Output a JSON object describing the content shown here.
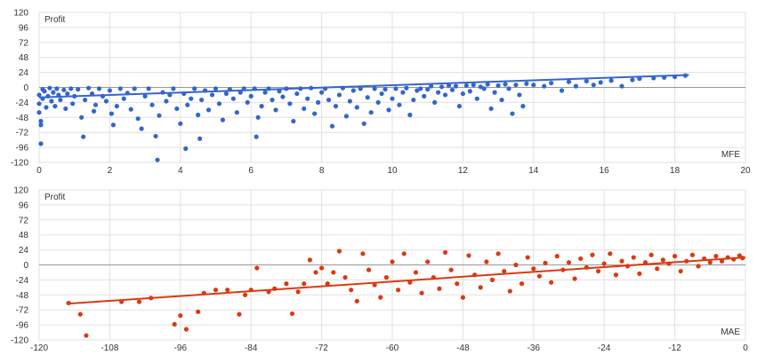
{
  "colors": {
    "mfe": "#3366cc",
    "mae": "#dc3912",
    "grid": "#e0e0e0",
    "zero": "#999999",
    "frame": "#c8c8c8"
  },
  "chart_data": [
    {
      "type": "scatter",
      "ylabel": "Profit",
      "xlabel": "MFE",
      "xlim": [
        0,
        20
      ],
      "ylim": [
        -120,
        120
      ],
      "xticks": [
        0,
        2,
        4,
        6,
        8,
        10,
        12,
        14,
        16,
        18,
        20
      ],
      "yticks": [
        -120,
        -96,
        -72,
        -48,
        -24,
        0,
        24,
        48,
        72,
        96,
        120
      ],
      "grid": true,
      "trendline": {
        "x": [
          0,
          18.4
        ],
        "y": [
          -16,
          20
        ]
      },
      "series": [
        {
          "color": "#3366cc",
          "points": [
            [
              0.0,
              -12
            ],
            [
              0.0,
              -26
            ],
            [
              0.0,
              -40
            ],
            [
              0.05,
              -54
            ],
            [
              0.05,
              -60
            ],
            [
              0.05,
              -90
            ],
            [
              0.1,
              -3
            ],
            [
              0.1,
              -18
            ],
            [
              0.15,
              -6
            ],
            [
              0.2,
              -32
            ],
            [
              0.25,
              -14
            ],
            [
              0.3,
              -1
            ],
            [
              0.35,
              -22
            ],
            [
              0.4,
              -8
            ],
            [
              0.45,
              -30
            ],
            [
              0.5,
              -2
            ],
            [
              0.55,
              -12
            ],
            [
              0.6,
              -20
            ],
            [
              0.7,
              -4
            ],
            [
              0.75,
              -34
            ],
            [
              0.8,
              -10
            ],
            [
              0.9,
              -2
            ],
            [
              0.95,
              -26
            ],
            [
              1.0,
              -14
            ],
            [
              1.1,
              -3
            ],
            [
              1.2,
              -48
            ],
            [
              1.25,
              -79
            ],
            [
              1.3,
              -20
            ],
            [
              1.4,
              -1
            ],
            [
              1.5,
              -10
            ],
            [
              1.55,
              -38
            ],
            [
              1.6,
              -28
            ],
            [
              1.7,
              -2
            ],
            [
              1.8,
              -14
            ],
            [
              1.9,
              -22
            ],
            [
              2.0,
              -5
            ],
            [
              2.05,
              -42
            ],
            [
              2.1,
              -60
            ],
            [
              2.2,
              -30
            ],
            [
              2.3,
              -2
            ],
            [
              2.4,
              -18
            ],
            [
              2.5,
              -9
            ],
            [
              2.6,
              -35
            ],
            [
              2.7,
              -2
            ],
            [
              2.8,
              -50
            ],
            [
              2.9,
              -66
            ],
            [
              3.0,
              -14
            ],
            [
              3.1,
              -2
            ],
            [
              3.2,
              -28
            ],
            [
              3.3,
              -78
            ],
            [
              3.35,
              -116
            ],
            [
              3.4,
              -45
            ],
            [
              3.5,
              -8
            ],
            [
              3.6,
              -22
            ],
            [
              3.7,
              -12
            ],
            [
              3.8,
              -2
            ],
            [
              3.9,
              -34
            ],
            [
              4.0,
              -58
            ],
            [
              4.1,
              -10
            ],
            [
              4.15,
              -98
            ],
            [
              4.2,
              -28
            ],
            [
              4.3,
              -18
            ],
            [
              4.4,
              -2
            ],
            [
              4.5,
              -44
            ],
            [
              4.55,
              -82
            ],
            [
              4.6,
              -20
            ],
            [
              4.7,
              -5
            ],
            [
              4.8,
              -36
            ],
            [
              4.9,
              -12
            ],
            [
              5.0,
              -2
            ],
            [
              5.1,
              -26
            ],
            [
              5.2,
              -52
            ],
            [
              5.3,
              -10
            ],
            [
              5.4,
              -3
            ],
            [
              5.5,
              -18
            ],
            [
              5.6,
              -40
            ],
            [
              5.7,
              -8
            ],
            [
              5.8,
              -2
            ],
            [
              5.9,
              -24
            ],
            [
              6.0,
              -14
            ],
            [
              6.1,
              -2
            ],
            [
              6.15,
              -79
            ],
            [
              6.2,
              -48
            ],
            [
              6.3,
              -30
            ],
            [
              6.4,
              -8
            ],
            [
              6.5,
              -2
            ],
            [
              6.6,
              -20
            ],
            [
              6.7,
              -36
            ],
            [
              6.8,
              -6
            ],
            [
              6.9,
              -15
            ],
            [
              7.0,
              -2
            ],
            [
              7.1,
              -26
            ],
            [
              7.2,
              -54
            ],
            [
              7.3,
              -10
            ],
            [
              7.4,
              -2
            ],
            [
              7.5,
              -34
            ],
            [
              7.6,
              -18
            ],
            [
              7.7,
              -1
            ],
            [
              7.8,
              -42
            ],
            [
              7.9,
              -24
            ],
            [
              8.0,
              -8
            ],
            [
              8.1,
              -2
            ],
            [
              8.2,
              -20
            ],
            [
              8.3,
              -62
            ],
            [
              8.4,
              -30
            ],
            [
              8.5,
              -12
            ],
            [
              8.6,
              -1
            ],
            [
              8.7,
              -46
            ],
            [
              8.8,
              -22
            ],
            [
              8.9,
              -5
            ],
            [
              9.0,
              -32
            ],
            [
              9.1,
              -2
            ],
            [
              9.2,
              -58
            ],
            [
              9.3,
              -16
            ],
            [
              9.4,
              -40
            ],
            [
              9.5,
              -2
            ],
            [
              9.6,
              -24
            ],
            [
              9.7,
              -10
            ],
            [
              9.8,
              -3
            ],
            [
              9.9,
              -36
            ],
            [
              10.0,
              -18
            ],
            [
              10.1,
              -2
            ],
            [
              10.2,
              -28
            ],
            [
              10.3,
              -8
            ],
            [
              10.4,
              -1
            ],
            [
              10.5,
              -44
            ],
            [
              10.6,
              -20
            ],
            [
              10.7,
              -5
            ],
            [
              10.8,
              -2
            ],
            [
              10.9,
              -14
            ],
            [
              11.0,
              -3
            ],
            [
              11.1,
              2
            ],
            [
              11.2,
              -24
            ],
            [
              11.3,
              -8
            ],
            [
              11.4,
              1
            ],
            [
              11.5,
              -12
            ],
            [
              11.6,
              3
            ],
            [
              11.7,
              -4
            ],
            [
              11.8,
              2
            ],
            [
              11.9,
              -30
            ],
            [
              12.0,
              -10
            ],
            [
              12.1,
              3
            ],
            [
              12.2,
              -6
            ],
            [
              12.3,
              4
            ],
            [
              12.4,
              -18
            ],
            [
              12.5,
              1
            ],
            [
              12.6,
              -2
            ],
            [
              12.7,
              5
            ],
            [
              12.8,
              -34
            ],
            [
              12.9,
              -8
            ],
            [
              13.0,
              3
            ],
            [
              13.1,
              -20
            ],
            [
              13.2,
              5
            ],
            [
              13.3,
              -2
            ],
            [
              13.4,
              -42
            ],
            [
              13.5,
              4
            ],
            [
              13.6,
              -12
            ],
            [
              13.7,
              -30
            ],
            [
              13.8,
              6
            ],
            [
              14.0,
              4
            ],
            [
              14.3,
              2
            ],
            [
              14.5,
              7
            ],
            [
              14.8,
              -5
            ],
            [
              15.0,
              9
            ],
            [
              15.2,
              2
            ],
            [
              15.5,
              10
            ],
            [
              15.7,
              4
            ],
            [
              15.9,
              8
            ],
            [
              16.2,
              11
            ],
            [
              16.5,
              2
            ],
            [
              16.8,
              12
            ],
            [
              17.0,
              14
            ],
            [
              17.4,
              15
            ],
            [
              17.7,
              16
            ],
            [
              18.0,
              17
            ],
            [
              18.3,
              19
            ]
          ]
        }
      ]
    },
    {
      "type": "scatter",
      "ylabel": "Profit",
      "xlabel": "MAE",
      "xlim": [
        -120,
        0
      ],
      "ylim": [
        -120,
        120
      ],
      "xticks": [
        -120,
        -108,
        -96,
        -84,
        -72,
        -60,
        -48,
        -36,
        -24,
        -12,
        0
      ],
      "yticks": [
        -120,
        -96,
        -72,
        -48,
        -24,
        0,
        24,
        48,
        72,
        96,
        120
      ],
      "grid": true,
      "trendline": {
        "x": [
          -115,
          0
        ],
        "y": [
          -62,
          12
        ]
      },
      "series": [
        {
          "color": "#dc3912",
          "points": [
            [
              -115,
              -61
            ],
            [
              -113,
              -79
            ],
            [
              -112,
              -113
            ],
            [
              -106,
              -59
            ],
            [
              -103,
              -59
            ],
            [
              -101,
              -53
            ],
            [
              -97,
              -95
            ],
            [
              -96,
              -81
            ],
            [
              -95,
              -103
            ],
            [
              -93,
              -75
            ],
            [
              -92,
              -45
            ],
            [
              -90,
              -40
            ],
            [
              -88,
              -40
            ],
            [
              -86,
              -79
            ],
            [
              -85,
              -48
            ],
            [
              -84,
              -40
            ],
            [
              -83,
              -5
            ],
            [
              -81,
              -43
            ],
            [
              -80,
              -38
            ],
            [
              -78,
              -30
            ],
            [
              -77,
              -78
            ],
            [
              -76,
              -43
            ],
            [
              -75,
              -30
            ],
            [
              -74,
              8
            ],
            [
              -73,
              -12
            ],
            [
              -72,
              -5
            ],
            [
              -71,
              -30
            ],
            [
              -70,
              -12
            ],
            [
              -69,
              22
            ],
            [
              -68,
              -20
            ],
            [
              -67,
              -40
            ],
            [
              -66,
              -58
            ],
            [
              -65,
              18
            ],
            [
              -64,
              -8
            ],
            [
              -63,
              -32
            ],
            [
              -62,
              -52
            ],
            [
              -61,
              -20
            ],
            [
              -60,
              5
            ],
            [
              -59,
              -40
            ],
            [
              -58,
              18
            ],
            [
              -57,
              -28
            ],
            [
              -56,
              -12
            ],
            [
              -55,
              -45
            ],
            [
              -54,
              5
            ],
            [
              -53,
              -20
            ],
            [
              -52,
              -38
            ],
            [
              -51,
              20
            ],
            [
              -50,
              -8
            ],
            [
              -49,
              -30
            ],
            [
              -48,
              -52
            ],
            [
              -47,
              15
            ],
            [
              -46,
              -16
            ],
            [
              -45,
              -36
            ],
            [
              -44,
              5
            ],
            [
              -43,
              -24
            ],
            [
              -42,
              18
            ],
            [
              -41,
              -10
            ],
            [
              -40,
              -42
            ],
            [
              -39,
              0
            ],
            [
              -38,
              -30
            ],
            [
              -37,
              12
            ],
            [
              -36,
              -6
            ],
            [
              -35,
              -18
            ],
            [
              -34,
              3
            ],
            [
              -33,
              -28
            ],
            [
              -32,
              14
            ],
            [
              -31,
              -8
            ],
            [
              -30,
              4
            ],
            [
              -29,
              -22
            ],
            [
              -28,
              10
            ],
            [
              -27,
              -4
            ],
            [
              -26,
              16
            ],
            [
              -25,
              -10
            ],
            [
              -24,
              2
            ],
            [
              -23,
              18
            ],
            [
              -22,
              -16
            ],
            [
              -21,
              6
            ],
            [
              -20,
              -2
            ],
            [
              -19,
              12
            ],
            [
              -18,
              -14
            ],
            [
              -17,
              4
            ],
            [
              -16,
              16
            ],
            [
              -15,
              -6
            ],
            [
              -14,
              8
            ],
            [
              -13,
              2
            ],
            [
              -12,
              14
            ],
            [
              -11,
              -10
            ],
            [
              -10,
              6
            ],
            [
              -9,
              16
            ],
            [
              -8,
              -2
            ],
            [
              -7,
              10
            ],
            [
              -6,
              4
            ],
            [
              -5,
              14
            ],
            [
              -4,
              6
            ],
            [
              -3,
              12
            ],
            [
              -2,
              9
            ],
            [
              -1,
              15
            ],
            [
              -0.5,
              11
            ]
          ]
        }
      ]
    }
  ]
}
